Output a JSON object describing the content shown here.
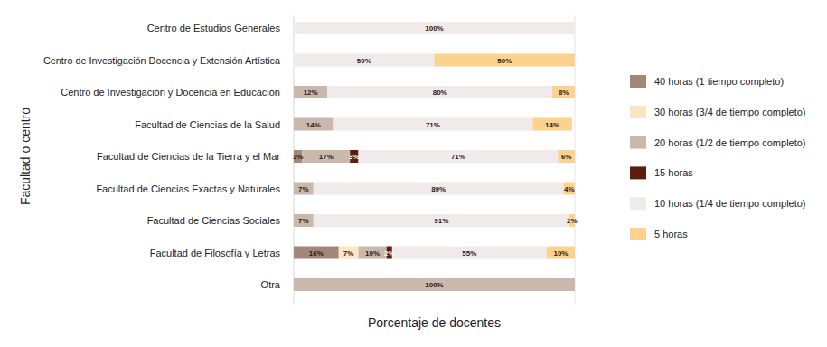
{
  "chart_data": {
    "type": "bar",
    "orientation": "horizontal",
    "stacked": true,
    "data_labels": true,
    "tick_labels": "y",
    "grid": false,
    "legend": "right",
    "x_label": "Porcentaje de docentes",
    "y_label": "Facultad o centro",
    "xlim": [
      0,
      100
    ],
    "categories": [
      "Centro de Estudios Generales",
      "Centro de Investigación Docencia y Extensión Artística",
      "Centro de Investigación y Docencia en Educación",
      "Facultad de Ciencias de la Salud",
      "Facultad de Ciencias de la Tierra y el Mar",
      "Facultad de Ciencias Exactas y Naturales",
      "Facultad de Ciencias Sociales",
      "Facultad de Filosofía y Letras",
      "Otra"
    ],
    "series": [
      {
        "name": "40 horas (1 tiempo completo)",
        "color": "#a3887a",
        "values": [
          null,
          null,
          null,
          null,
          3,
          null,
          null,
          16,
          null
        ],
        "value_labels": [
          null,
          null,
          null,
          null,
          "3%",
          null,
          null,
          "16%",
          null
        ]
      },
      {
        "name": "30 horas (3/4 de tiempo completo)",
        "color": "#fde5c3",
        "values": [
          null,
          null,
          null,
          null,
          null,
          null,
          null,
          7,
          null
        ],
        "value_labels": [
          null,
          null,
          null,
          null,
          null,
          null,
          null,
          "7%",
          null
        ]
      },
      {
        "name": "20 horas (1/2 de tiempo completo)",
        "color": "#cbb8ac",
        "values": [
          null,
          null,
          12,
          14,
          17,
          7,
          7,
          10,
          100
        ],
        "value_labels": [
          null,
          null,
          "12%",
          "14%",
          "17%",
          "7%",
          "7%",
          "10%",
          "100%"
        ]
      },
      {
        "name": "15 horas",
        "color": "#5b1e0e",
        "values": [
          null,
          null,
          null,
          null,
          3,
          null,
          null,
          2,
          null
        ],
        "value_labels": [
          null,
          null,
          null,
          null,
          "3%",
          null,
          null,
          "2%",
          null
        ]
      },
      {
        "name": "10 horas (1/4 de tiempo completo)",
        "color": "#f0ebea",
        "values": [
          100,
          50,
          80,
          71,
          71,
          89,
          91,
          55,
          null
        ],
        "value_labels": [
          "100%",
          "50%",
          "80%",
          "71%",
          "71%",
          "89%",
          "91%",
          "55%",
          null
        ]
      },
      {
        "name": "5 horas",
        "color": "#fdd28e",
        "values": [
          null,
          50,
          8,
          14,
          6,
          4,
          2,
          10,
          null
        ],
        "value_labels": [
          null,
          "50%",
          "8%",
          "14%",
          "6%",
          "4%",
          "2%",
          "10%",
          null
        ]
      }
    ]
  }
}
